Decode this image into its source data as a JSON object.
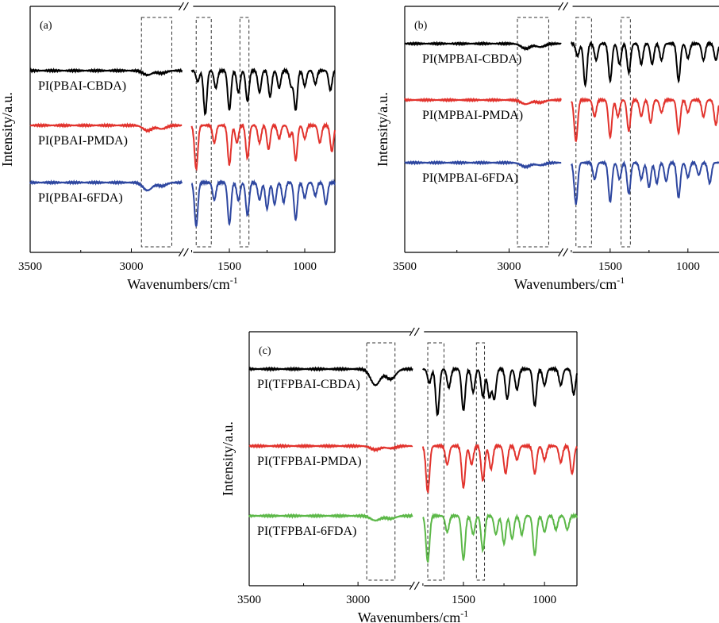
{
  "chart_data": [
    {
      "type": "line",
      "panel": "(a)",
      "xlabel": "Wavenumbers/cm",
      "xlabel_sup": "-1",
      "ylabel": "Intensity/a.u.",
      "x_reversed": true,
      "x_segments": [
        [
          3500,
          2750
        ],
        [
          1750,
          800
        ]
      ],
      "x_ticks": [
        3500,
        3000,
        1500,
        1000
      ],
      "highlight_ranges": [
        [
          2950,
          2800
        ],
        [
          1720,
          1620
        ],
        [
          1430,
          1370
        ]
      ],
      "series": [
        {
          "name": "PI(PBAI-CBDA)",
          "color": "#000000",
          "offset": 2,
          "peaks": [
            [
              2920,
              0.1
            ],
            [
              2850,
              0.06
            ],
            [
              1710,
              0.25
            ],
            [
              1660,
              1.0
            ],
            [
              1590,
              0.4
            ],
            [
              1500,
              0.9
            ],
            [
              1440,
              0.5
            ],
            [
              1380,
              0.7
            ],
            [
              1300,
              0.5
            ],
            [
              1230,
              0.6
            ],
            [
              1170,
              0.4
            ],
            [
              1090,
              0.35
            ],
            [
              1060,
              0.9
            ],
            [
              1000,
              0.35
            ],
            [
              930,
              0.3
            ],
            [
              830,
              0.45
            ]
          ]
        },
        {
          "name": "PI(PBAI-PMDA)",
          "color": "#e2332d",
          "offset": 1,
          "peaks": [
            [
              2920,
              0.12
            ],
            [
              2850,
              0.08
            ],
            [
              1780,
              0.2
            ],
            [
              1720,
              1.0
            ],
            [
              1600,
              0.4
            ],
            [
              1500,
              0.9
            ],
            [
              1450,
              0.4
            ],
            [
              1380,
              0.75
            ],
            [
              1300,
              0.4
            ],
            [
              1240,
              0.55
            ],
            [
              1170,
              0.3
            ],
            [
              1100,
              0.25
            ],
            [
              1060,
              0.8
            ],
            [
              1000,
              0.3
            ],
            [
              900,
              0.4
            ],
            [
              820,
              0.6
            ]
          ]
        },
        {
          "name": "PI(PBAI-6FDA)",
          "color": "#2e47a0",
          "offset": 0,
          "peaks": [
            [
              2920,
              0.18
            ],
            [
              2850,
              0.08
            ],
            [
              1785,
              0.25
            ],
            [
              1720,
              1.0
            ],
            [
              1600,
              0.4
            ],
            [
              1500,
              0.95
            ],
            [
              1440,
              0.4
            ],
            [
              1380,
              0.75
            ],
            [
              1300,
              0.4
            ],
            [
              1250,
              0.6
            ],
            [
              1200,
              0.5
            ],
            [
              1140,
              0.45
            ],
            [
              1060,
              0.85
            ],
            [
              1000,
              0.35
            ],
            [
              930,
              0.3
            ],
            [
              860,
              0.5
            ]
          ]
        }
      ]
    },
    {
      "type": "line",
      "panel": "(b)",
      "xlabel": "Wavenumbers/cm",
      "xlabel_sup": "-1",
      "ylabel": "Intensity/a.u.",
      "x_reversed": true,
      "x_segments": [
        [
          3500,
          2750
        ],
        [
          1750,
          800
        ]
      ],
      "x_ticks": [
        3500,
        3000,
        1500,
        1000
      ],
      "highlight_ranges": [
        [
          2960,
          2810
        ],
        [
          1720,
          1620
        ],
        [
          1430,
          1370
        ]
      ],
      "series": [
        {
          "name": "PI(MPBAI-CBDA)",
          "color": "#000000",
          "offset": 2,
          "peaks": [
            [
              2920,
              0.12
            ],
            [
              2850,
              0.08
            ],
            [
              1710,
              0.3
            ],
            [
              1660,
              1.0
            ],
            [
              1590,
              0.4
            ],
            [
              1500,
              0.9
            ],
            [
              1440,
              0.5
            ],
            [
              1380,
              0.7
            ],
            [
              1300,
              0.5
            ],
            [
              1230,
              0.5
            ],
            [
              1170,
              0.4
            ],
            [
              1060,
              0.9
            ],
            [
              1000,
              0.35
            ],
            [
              900,
              0.4
            ],
            [
              820,
              0.4
            ]
          ]
        },
        {
          "name": "PI(MPBAI-PMDA)",
          "color": "#e2332d",
          "offset": 1,
          "peaks": [
            [
              2920,
              0.1
            ],
            [
              2850,
              0.06
            ],
            [
              1780,
              0.2
            ],
            [
              1720,
              1.0
            ],
            [
              1600,
              0.4
            ],
            [
              1500,
              0.9
            ],
            [
              1450,
              0.4
            ],
            [
              1380,
              0.75
            ],
            [
              1300,
              0.4
            ],
            [
              1240,
              0.55
            ],
            [
              1170,
              0.3
            ],
            [
              1060,
              0.8
            ],
            [
              1000,
              0.3
            ],
            [
              900,
              0.4
            ],
            [
              820,
              0.6
            ]
          ]
        },
        {
          "name": "PI(MPBAI-6FDA)",
          "color": "#2e47a0",
          "offset": 0,
          "peaks": [
            [
              2920,
              0.1
            ],
            [
              2850,
              0.06
            ],
            [
              1785,
              0.25
            ],
            [
              1720,
              1.0
            ],
            [
              1600,
              0.4
            ],
            [
              1500,
              0.95
            ],
            [
              1440,
              0.4
            ],
            [
              1380,
              0.75
            ],
            [
              1300,
              0.4
            ],
            [
              1250,
              0.6
            ],
            [
              1200,
              0.5
            ],
            [
              1140,
              0.45
            ],
            [
              1060,
              0.85
            ],
            [
              1000,
              0.35
            ],
            [
              930,
              0.3
            ],
            [
              860,
              0.5
            ]
          ]
        }
      ]
    },
    {
      "type": "line",
      "panel": "(c)",
      "xlabel": "Wavenumbers/cm",
      "xlabel_sup": "-1",
      "ylabel": "Intensity/a.u.",
      "x_reversed": true,
      "x_segments": [
        [
          3500,
          2750
        ],
        [
          1750,
          800
        ]
      ],
      "x_ticks": [
        3500,
        3000,
        1500,
        1000
      ],
      "highlight_ranges": [
        [
          2960,
          2830
        ],
        [
          1720,
          1620
        ],
        [
          1420,
          1370
        ]
      ],
      "series": [
        {
          "name": "PI(TFPBAI-CBDA)",
          "color": "#000000",
          "offset": 2,
          "peaks": [
            [
              2920,
              0.35
            ],
            [
              2850,
              0.22
            ],
            [
              1710,
              0.3
            ],
            [
              1660,
              1.0
            ],
            [
              1590,
              0.4
            ],
            [
              1500,
              0.9
            ],
            [
              1440,
              0.5
            ],
            [
              1380,
              0.6
            ],
            [
              1340,
              0.6
            ],
            [
              1310,
              0.65
            ],
            [
              1230,
              0.65
            ],
            [
              1170,
              0.45
            ],
            [
              1060,
              0.8
            ],
            [
              1000,
              0.35
            ],
            [
              900,
              0.35
            ],
            [
              820,
              0.55
            ]
          ]
        },
        {
          "name": "PI(TFPBAI-PMDA)",
          "color": "#e2332d",
          "offset": 1,
          "peaks": [
            [
              2920,
              0.08
            ],
            [
              2850,
              0.05
            ],
            [
              1780,
              0.2
            ],
            [
              1720,
              1.0
            ],
            [
              1600,
              0.4
            ],
            [
              1500,
              0.9
            ],
            [
              1450,
              0.4
            ],
            [
              1380,
              0.75
            ],
            [
              1330,
              0.5
            ],
            [
              1240,
              0.6
            ],
            [
              1170,
              0.3
            ],
            [
              1060,
              0.6
            ],
            [
              1000,
              0.3
            ],
            [
              900,
              0.35
            ],
            [
              830,
              0.6
            ]
          ]
        },
        {
          "name": "PI(TFPBAI-6FDA)",
          "color": "#5cb848",
          "offset": 0,
          "peaks": [
            [
              2920,
              0.1
            ],
            [
              2850,
              0.06
            ],
            [
              1785,
              0.25
            ],
            [
              1720,
              1.0
            ],
            [
              1600,
              0.35
            ],
            [
              1500,
              0.95
            ],
            [
              1440,
              0.4
            ],
            [
              1380,
              0.75
            ],
            [
              1300,
              0.4
            ],
            [
              1250,
              0.6
            ],
            [
              1200,
              0.5
            ],
            [
              1140,
              0.4
            ],
            [
              1060,
              0.85
            ],
            [
              1000,
              0.35
            ],
            [
              930,
              0.3
            ],
            [
              860,
              0.3
            ]
          ]
        }
      ]
    }
  ]
}
